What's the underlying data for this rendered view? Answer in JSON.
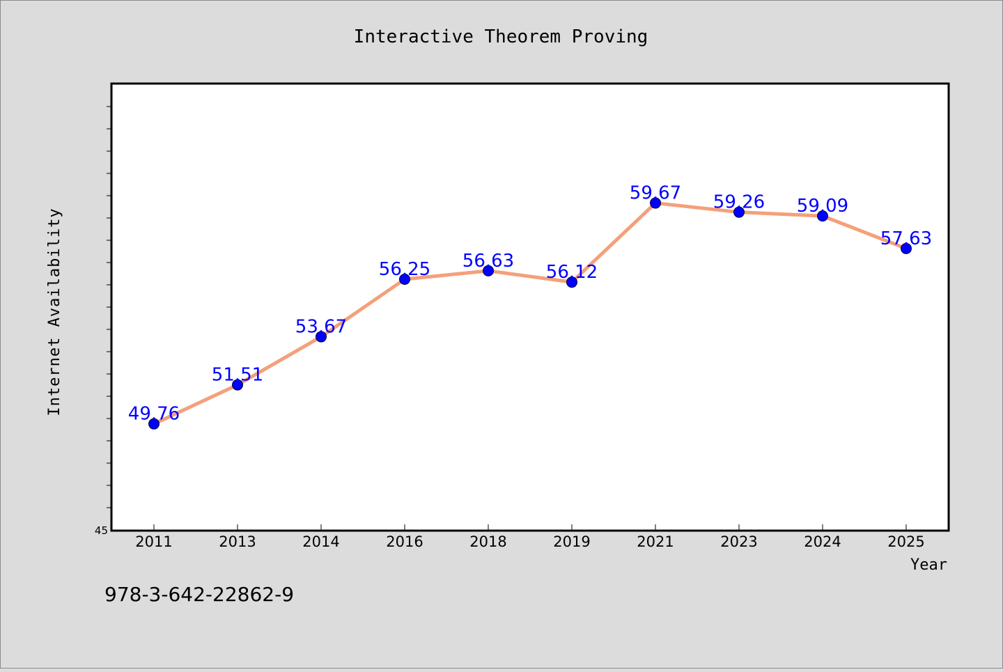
{
  "chart_data": {
    "type": "line",
    "title": "Interactive Theorem Proving",
    "xlabel": "Year",
    "ylabel": "Internet Availability",
    "categories": [
      "2011",
      "2013",
      "2014",
      "2016",
      "2018",
      "2019",
      "2021",
      "2023",
      "2024",
      "2025"
    ],
    "series": [
      {
        "values": [
          49.76,
          51.51,
          53.67,
          56.25,
          56.63,
          56.12,
          59.67,
          59.26,
          59.09,
          57.63
        ],
        "data_labels": [
          "49.76",
          "51.51",
          "53.67",
          "56.25",
          "56.63",
          "56.12",
          "59.67",
          "59.26",
          "59.09",
          "57.63"
        ]
      }
    ],
    "ylim": [
      45,
      65
    ],
    "y_tick_labels": [
      "45"
    ],
    "y_minor_step": 1,
    "grid": false,
    "colors": {
      "line": "#f4a07a",
      "marker": "#0000ff",
      "label": "#0000ff",
      "background": "#dcdcdc",
      "plot_background": "#ffffff"
    }
  },
  "footer": {
    "isbn": "978-3-642-22862-9"
  }
}
